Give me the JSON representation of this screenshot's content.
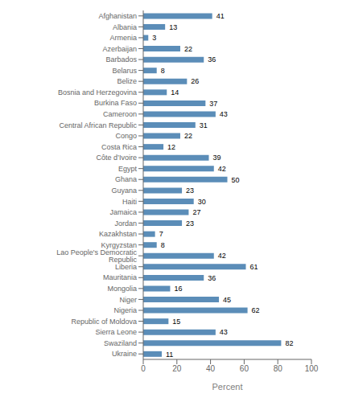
{
  "chart_data": {
    "type": "bar",
    "orientation": "horizontal",
    "categories": [
      "Afghanistan",
      "Albania",
      "Armenia",
      "Azerbaijan",
      "Barbados",
      "Belarus",
      "Belize",
      "Bosnia and Herzegovina",
      "Burkina Faso",
      "Cameroon",
      "Central African Republic",
      "Congo",
      "Costa Rica",
      "Côte d’Ivoire",
      "Egypt",
      "Ghana",
      "Guyana",
      "Haiti",
      "Jamaica",
      "Jordan",
      "Kazakhstan",
      "Kyrgyzstan",
      "Lao People's Democratic Republic",
      "Liberia",
      "Mauritania",
      "Mongolia",
      "Niger",
      "Nigeria",
      "Republic of Moldova",
      "Sierra Leone",
      "Swaziland",
      "Ukraine"
    ],
    "values": [
      41,
      13,
      3,
      22,
      36,
      8,
      26,
      14,
      37,
      43,
      31,
      22,
      12,
      39,
      42,
      50,
      23,
      30,
      27,
      23,
      7,
      8,
      42,
      61,
      36,
      16,
      45,
      62,
      15,
      43,
      82,
      11
    ],
    "color": "#5b8db8",
    "xlim": [
      0,
      100
    ],
    "xticks": [
      0,
      20,
      40,
      60,
      80,
      100
    ],
    "xlabel": "Percent",
    "data_labels": true,
    "grid": false
  }
}
